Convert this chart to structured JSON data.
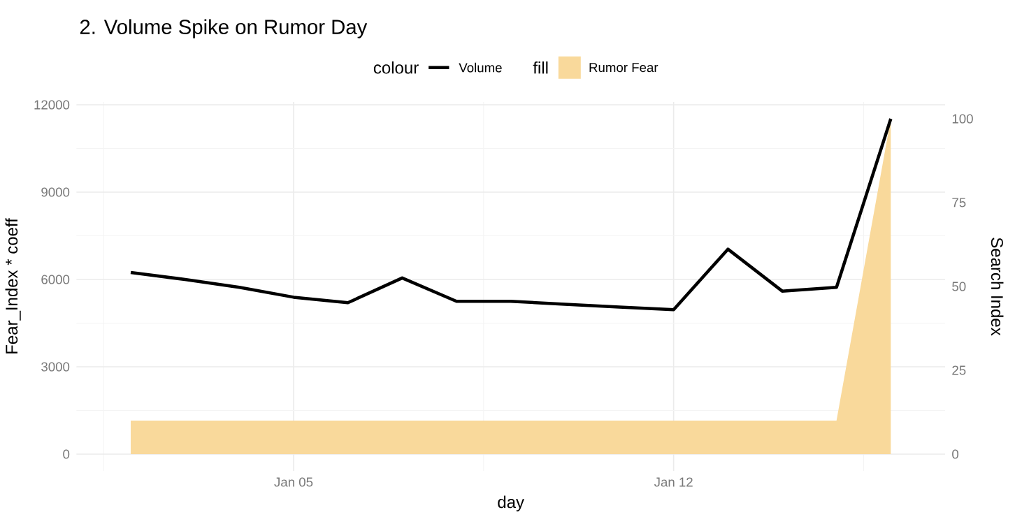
{
  "chart_data": {
    "type": "line",
    "title": "2. Volume Spike on Rumor Day",
    "xlabel": "day",
    "ylabel": "Fear_Index * coeff",
    "y2label": "Search Index",
    "legend_title": "colour",
    "annotations": [
      "fill"
    ],
    "x": [
      "--01-02",
      "--01-03",
      "--01-04",
      "--01-05",
      "--01-06",
      "--01-07",
      "--01-08",
      "--01-09",
      "--01-10",
      "--01-11",
      "--01-12",
      "--01-13",
      "--01-14",
      "--01-15",
      "--01-16"
    ],
    "series": [
      {
        "name": "Volume",
        "color": "#000000",
        "values": [
          6240,
          6000,
          5730,
          5390,
          5200,
          6050,
          5250,
          5250,
          5150,
          5050,
          4960,
          7040,
          5600,
          5730,
          11520
        ]
      },
      {
        "name": "Rumor Fear",
        "type": "area",
        "axis": "y2",
        "color": "#f9d99b",
        "values": [
          10,
          10,
          10,
          10,
          10,
          10,
          10,
          10,
          10,
          10,
          10,
          10,
          10,
          10,
          100
        ]
      }
    ],
    "xlim": [
      "--01-01",
      "--01-17"
    ],
    "xticks": [
      {
        "value": "--01-05",
        "label": "Jan 05"
      },
      {
        "value": "--01-12",
        "label": "Jan 12"
      }
    ],
    "ylim": [
      -576,
      12096
    ],
    "yticks": [
      0,
      3000,
      6000,
      9000,
      12000
    ],
    "y2lim": [
      -5,
      105
    ],
    "y2ticks": [
      0,
      25,
      50,
      75,
      100
    ],
    "grid": true,
    "legend": "top",
    "marker": "none",
    "line_style": "solid"
  }
}
